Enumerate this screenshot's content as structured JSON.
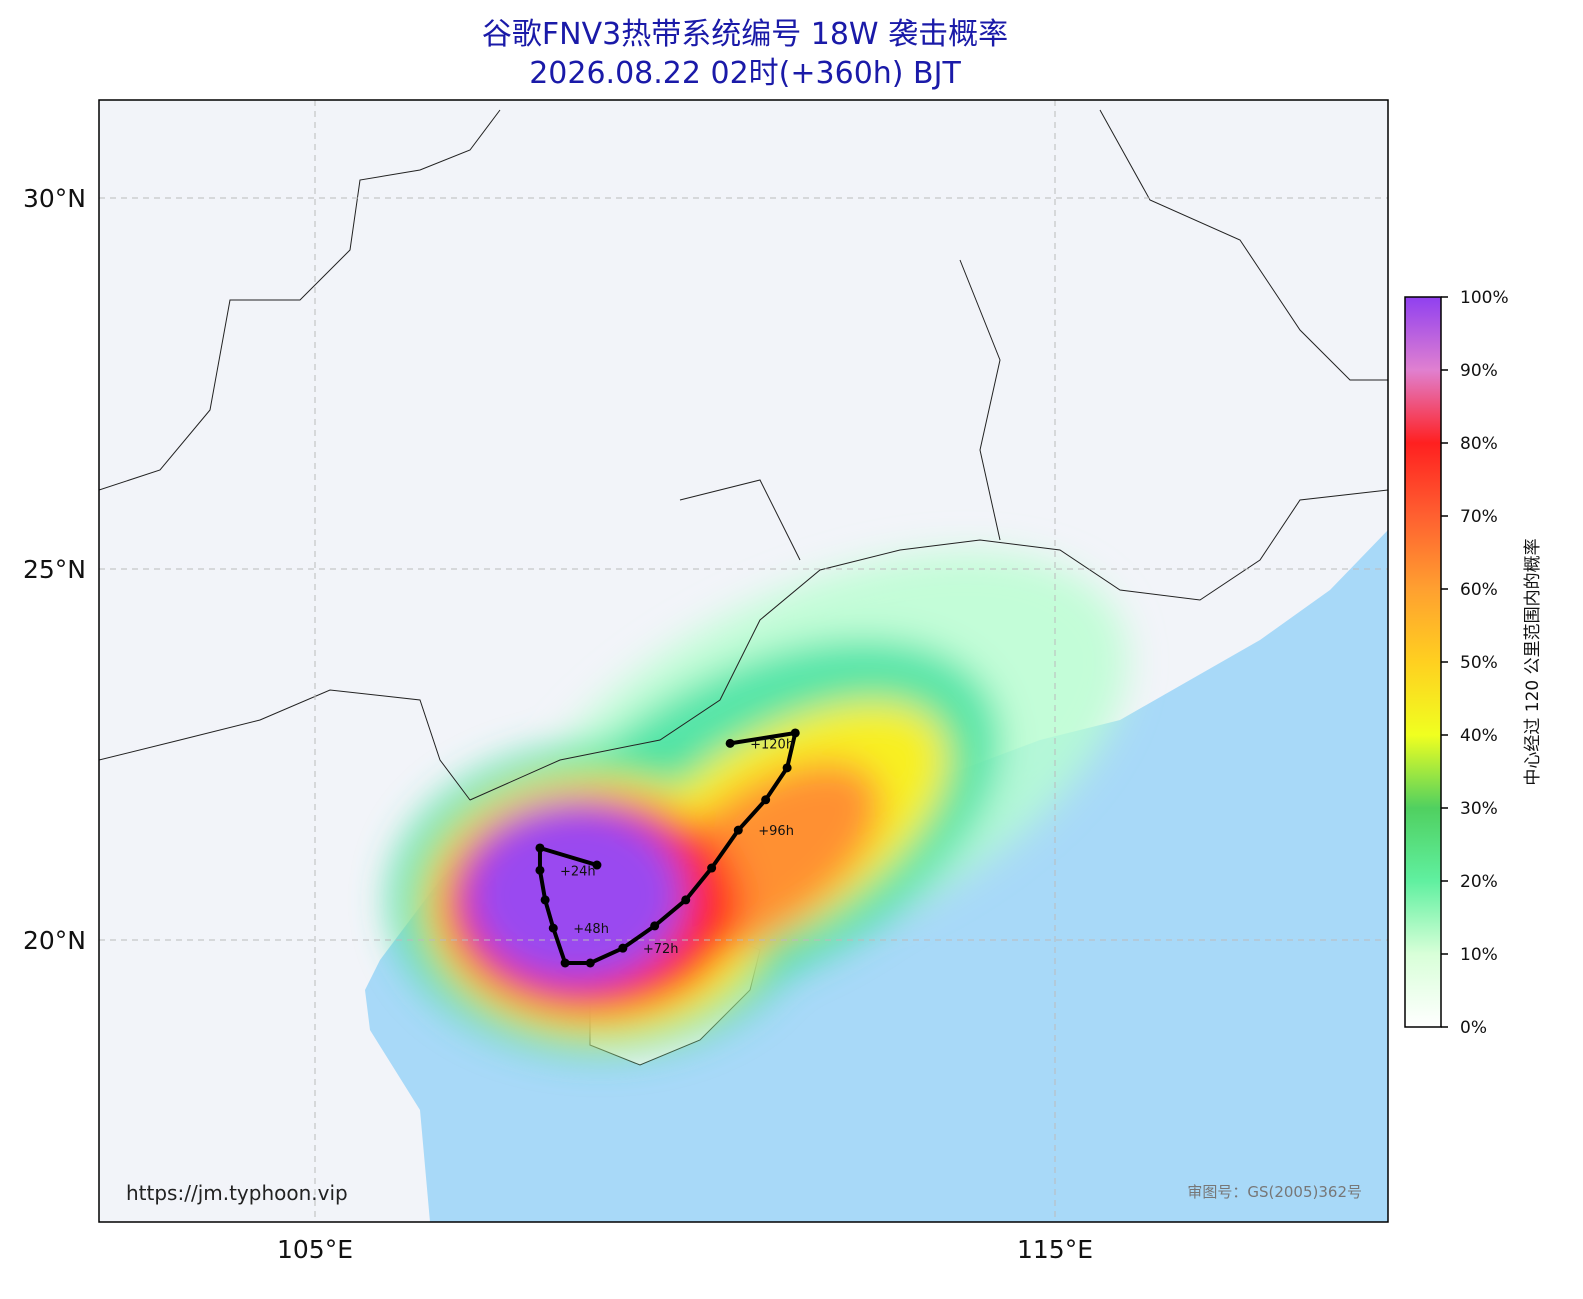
{
  "title": "谷歌FNV3热带系统编号 18W 袭击概率",
  "subtitle": "2026.08.22 02时(+360h) BJT",
  "lat_ticks": [
    {
      "value": 30,
      "label": "30°N"
    },
    {
      "value": 25,
      "label": "25°N"
    },
    {
      "value": 20,
      "label": "20°N"
    }
  ],
  "lon_ticks": [
    {
      "value": 105,
      "label": "105°E"
    },
    {
      "value": 115,
      "label": "115°E"
    }
  ],
  "colorbar": {
    "label": "中心经过 120 公里范围内的概率",
    "ticks": [
      {
        "value": 0,
        "label": "0%"
      },
      {
        "value": 10,
        "label": "10%"
      },
      {
        "value": 20,
        "label": "20%"
      },
      {
        "value": 30,
        "label": "30%"
      },
      {
        "value": 40,
        "label": "40%"
      },
      {
        "value": 50,
        "label": "50%"
      },
      {
        "value": 60,
        "label": "60%"
      },
      {
        "value": 70,
        "label": "70%"
      },
      {
        "value": 80,
        "label": "80%"
      },
      {
        "value": 90,
        "label": "90%"
      },
      {
        "value": 100,
        "label": "100%"
      }
    ]
  },
  "track": [
    {
      "lon": 108.81,
      "lat": 21.01
    },
    {
      "lon": 108.04,
      "lat": 21.24
    },
    {
      "lon": 108.04,
      "lat": 20.94,
      "label": "+24h"
    },
    {
      "lon": 108.11,
      "lat": 20.54
    },
    {
      "lon": 108.22,
      "lat": 20.16,
      "label": "+48h"
    },
    {
      "lon": 108.38,
      "lat": 19.69
    },
    {
      "lon": 108.72,
      "lat": 19.69
    },
    {
      "lon": 109.16,
      "lat": 19.89,
      "label": "+72h"
    },
    {
      "lon": 109.59,
      "lat": 20.19
    },
    {
      "lon": 110.01,
      "lat": 20.54
    },
    {
      "lon": 110.36,
      "lat": 20.97
    },
    {
      "lon": 110.72,
      "lat": 21.48,
      "label": "+96h"
    },
    {
      "lon": 111.09,
      "lat": 21.89
    },
    {
      "lon": 111.38,
      "lat": 22.32
    },
    {
      "lon": 111.49,
      "lat": 22.79
    },
    {
      "lon": 110.61,
      "lat": 22.65,
      "label": "+120h"
    }
  ],
  "website": "https://jm.typhoon.vip",
  "approval": "审图号：GS(2005)362号"
}
